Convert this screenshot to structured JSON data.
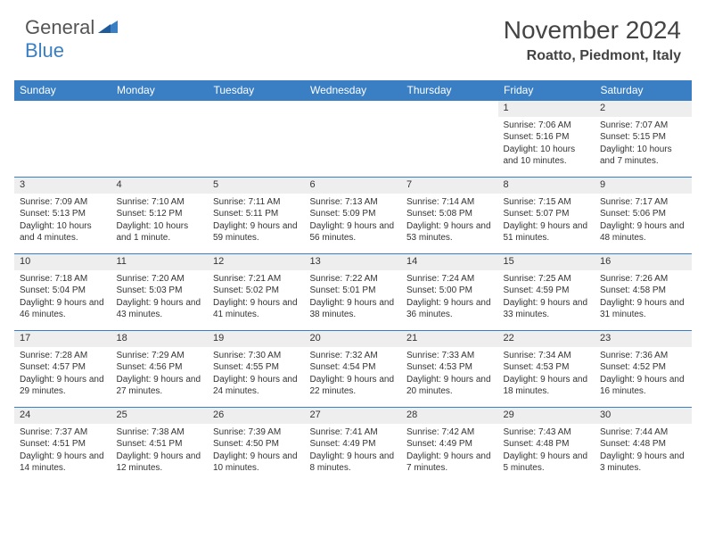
{
  "logo": {
    "general": "General",
    "blue": "Blue"
  },
  "title": "November 2024",
  "location": "Roatto, Piedmont, Italy",
  "colors": {
    "header_bg": "#3a7fc4",
    "header_fg": "#ffffff",
    "daynum_bg": "#eeeeee",
    "border": "#3a7fc4",
    "text": "#333333",
    "logo_gray": "#555555",
    "logo_blue": "#3a7fc4"
  },
  "day_headers": [
    "Sunday",
    "Monday",
    "Tuesday",
    "Wednesday",
    "Thursday",
    "Friday",
    "Saturday"
  ],
  "weeks": [
    [
      null,
      null,
      null,
      null,
      null,
      {
        "n": "1",
        "sunrise": "7:06 AM",
        "sunset": "5:16 PM",
        "daylight": "10 hours and 10 minutes."
      },
      {
        "n": "2",
        "sunrise": "7:07 AM",
        "sunset": "5:15 PM",
        "daylight": "10 hours and 7 minutes."
      }
    ],
    [
      {
        "n": "3",
        "sunrise": "7:09 AM",
        "sunset": "5:13 PM",
        "daylight": "10 hours and 4 minutes."
      },
      {
        "n": "4",
        "sunrise": "7:10 AM",
        "sunset": "5:12 PM",
        "daylight": "10 hours and 1 minute."
      },
      {
        "n": "5",
        "sunrise": "7:11 AM",
        "sunset": "5:11 PM",
        "daylight": "9 hours and 59 minutes."
      },
      {
        "n": "6",
        "sunrise": "7:13 AM",
        "sunset": "5:09 PM",
        "daylight": "9 hours and 56 minutes."
      },
      {
        "n": "7",
        "sunrise": "7:14 AM",
        "sunset": "5:08 PM",
        "daylight": "9 hours and 53 minutes."
      },
      {
        "n": "8",
        "sunrise": "7:15 AM",
        "sunset": "5:07 PM",
        "daylight": "9 hours and 51 minutes."
      },
      {
        "n": "9",
        "sunrise": "7:17 AM",
        "sunset": "5:06 PM",
        "daylight": "9 hours and 48 minutes."
      }
    ],
    [
      {
        "n": "10",
        "sunrise": "7:18 AM",
        "sunset": "5:04 PM",
        "daylight": "9 hours and 46 minutes."
      },
      {
        "n": "11",
        "sunrise": "7:20 AM",
        "sunset": "5:03 PM",
        "daylight": "9 hours and 43 minutes."
      },
      {
        "n": "12",
        "sunrise": "7:21 AM",
        "sunset": "5:02 PM",
        "daylight": "9 hours and 41 minutes."
      },
      {
        "n": "13",
        "sunrise": "7:22 AM",
        "sunset": "5:01 PM",
        "daylight": "9 hours and 38 minutes."
      },
      {
        "n": "14",
        "sunrise": "7:24 AM",
        "sunset": "5:00 PM",
        "daylight": "9 hours and 36 minutes."
      },
      {
        "n": "15",
        "sunrise": "7:25 AM",
        "sunset": "4:59 PM",
        "daylight": "9 hours and 33 minutes."
      },
      {
        "n": "16",
        "sunrise": "7:26 AM",
        "sunset": "4:58 PM",
        "daylight": "9 hours and 31 minutes."
      }
    ],
    [
      {
        "n": "17",
        "sunrise": "7:28 AM",
        "sunset": "4:57 PM",
        "daylight": "9 hours and 29 minutes."
      },
      {
        "n": "18",
        "sunrise": "7:29 AM",
        "sunset": "4:56 PM",
        "daylight": "9 hours and 27 minutes."
      },
      {
        "n": "19",
        "sunrise": "7:30 AM",
        "sunset": "4:55 PM",
        "daylight": "9 hours and 24 minutes."
      },
      {
        "n": "20",
        "sunrise": "7:32 AM",
        "sunset": "4:54 PM",
        "daylight": "9 hours and 22 minutes."
      },
      {
        "n": "21",
        "sunrise": "7:33 AM",
        "sunset": "4:53 PM",
        "daylight": "9 hours and 20 minutes."
      },
      {
        "n": "22",
        "sunrise": "7:34 AM",
        "sunset": "4:53 PM",
        "daylight": "9 hours and 18 minutes."
      },
      {
        "n": "23",
        "sunrise": "7:36 AM",
        "sunset": "4:52 PM",
        "daylight": "9 hours and 16 minutes."
      }
    ],
    [
      {
        "n": "24",
        "sunrise": "7:37 AM",
        "sunset": "4:51 PM",
        "daylight": "9 hours and 14 minutes."
      },
      {
        "n": "25",
        "sunrise": "7:38 AM",
        "sunset": "4:51 PM",
        "daylight": "9 hours and 12 minutes."
      },
      {
        "n": "26",
        "sunrise": "7:39 AM",
        "sunset": "4:50 PM",
        "daylight": "9 hours and 10 minutes."
      },
      {
        "n": "27",
        "sunrise": "7:41 AM",
        "sunset": "4:49 PM",
        "daylight": "9 hours and 8 minutes."
      },
      {
        "n": "28",
        "sunrise": "7:42 AM",
        "sunset": "4:49 PM",
        "daylight": "9 hours and 7 minutes."
      },
      {
        "n": "29",
        "sunrise": "7:43 AM",
        "sunset": "4:48 PM",
        "daylight": "9 hours and 5 minutes."
      },
      {
        "n": "30",
        "sunrise": "7:44 AM",
        "sunset": "4:48 PM",
        "daylight": "9 hours and 3 minutes."
      }
    ]
  ],
  "labels": {
    "sunrise": "Sunrise: ",
    "sunset": "Sunset: ",
    "daylight": "Daylight: "
  }
}
